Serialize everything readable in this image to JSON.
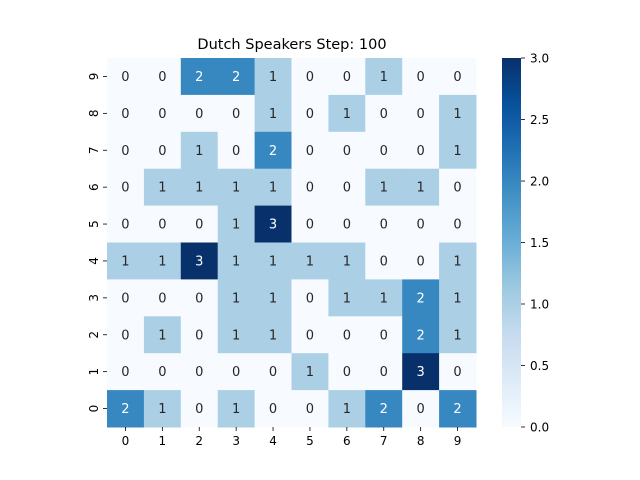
{
  "chart_data": {
    "type": "heatmap",
    "title": "Dutch Speakers Step: 100",
    "xlabel": "",
    "ylabel": "",
    "x_categories": [
      "0",
      "1",
      "2",
      "3",
      "4",
      "5",
      "6",
      "7",
      "8",
      "9"
    ],
    "y_categories_top_to_bottom": [
      "9",
      "8",
      "7",
      "6",
      "5",
      "4",
      "3",
      "2",
      "1",
      "0"
    ],
    "values_top_to_bottom": [
      [
        0,
        0,
        2,
        2,
        1,
        0,
        0,
        1,
        0,
        0
      ],
      [
        0,
        0,
        0,
        0,
        1,
        0,
        1,
        0,
        0,
        1
      ],
      [
        0,
        0,
        1,
        0,
        2,
        0,
        0,
        0,
        0,
        1
      ],
      [
        0,
        1,
        1,
        1,
        1,
        0,
        0,
        1,
        1,
        0
      ],
      [
        0,
        0,
        0,
        1,
        3,
        0,
        0,
        0,
        0,
        0
      ],
      [
        1,
        1,
        3,
        1,
        1,
        1,
        1,
        0,
        0,
        1
      ],
      [
        0,
        0,
        0,
        1,
        1,
        0,
        1,
        1,
        2,
        1
      ],
      [
        0,
        1,
        0,
        1,
        1,
        0,
        0,
        0,
        2,
        1
      ],
      [
        0,
        0,
        0,
        0,
        0,
        1,
        0,
        0,
        3,
        0
      ],
      [
        2,
        1,
        0,
        1,
        0,
        0,
        1,
        2,
        0,
        2
      ]
    ],
    "colormap": "Blues",
    "colors": {
      "0": "#f7fbff",
      "1": "#abd0e6",
      "2": "#3787c0",
      "3": "#08306b"
    },
    "colorbar": {
      "range": [
        0.0,
        3.0
      ],
      "ticks": [
        "0.0",
        "0.5",
        "1.0",
        "1.5",
        "2.0",
        "2.5",
        "3.0"
      ]
    },
    "annotations": true,
    "grid": false
  }
}
